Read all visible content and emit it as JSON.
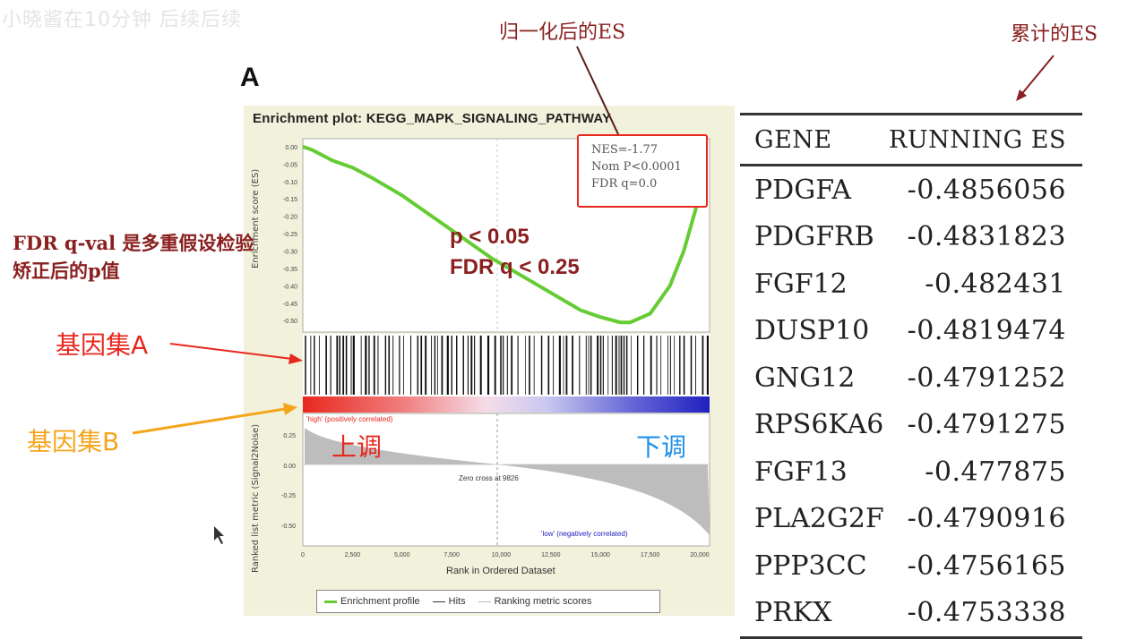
{
  "watermark": "小晓酱在10分钟 后续后续",
  "panel_letter": "A",
  "annotations": {
    "normalized_es": "归一化后的ES",
    "cumulative_es": "累计的ES",
    "fdr_note": "FDR q-val 是多重假设检验矫正后的p值",
    "gene_set_a": "基因集A",
    "gene_set_b": "基因集B",
    "up": "上调",
    "down": "下调",
    "p_threshold": "p < 0.05",
    "fdr_threshold": "FDR q < 0.25"
  },
  "plot": {
    "title": "Enrichment plot: KEGG_MAPK_SIGNALING_PATHWAY",
    "es_ylabel": "Enrichment score (ES)",
    "metric_ylabel": "Ranked list metric (Signal2Noise)",
    "xlabel": "Rank in Ordered Dataset",
    "es_ticks": [
      "0.00",
      "-0.05",
      "-0.10",
      "-0.15",
      "-0.20",
      "-0.25",
      "-0.30",
      "-0.35",
      "-0.40",
      "-0.45",
      "-0.50"
    ],
    "metric_ticks": [
      "0.25",
      "0.00",
      "-0.25",
      "-0.50"
    ],
    "x_ticks": [
      "0",
      "2,500",
      "5,000",
      "7,500",
      "10,000",
      "12,500",
      "15,000",
      "17,500",
      "20,000"
    ],
    "pos_label": "'high' (positively correlated)",
    "neg_label": "'low' (negatively correlated)",
    "zero_cross": "Zero cross at 9826",
    "stats": {
      "nes": "NES=-1.77",
      "nom_p": "Nom P<0.0001",
      "fdr": "FDR q=0.0"
    },
    "legend": {
      "profile": "Enrichment profile",
      "hits": "Hits",
      "metric": "Ranking metric scores"
    },
    "colors": {
      "profile": "#66cc33",
      "positive": "#e8281e",
      "negative": "#2020c0"
    }
  },
  "chart_data": {
    "type": "line",
    "title": "Enrichment plot: KEGG_MAPK_SIGNALING_PATHWAY",
    "xlabel": "Rank in Ordered Dataset",
    "ylabel": "Enrichment score (ES)",
    "xlim": [
      0,
      20500
    ],
    "ylim": [
      -0.52,
      0.01
    ],
    "series": [
      {
        "name": "Enrichment profile",
        "x": [
          0,
          500,
          1500,
          2500,
          3500,
          5000,
          6500,
          8000,
          9500,
          11000,
          12500,
          14000,
          15000,
          16000,
          16500,
          17500,
          18500,
          19200,
          19800,
          20300
        ],
        "y": [
          0.0,
          -0.01,
          -0.04,
          -0.06,
          -0.09,
          -0.14,
          -0.2,
          -0.26,
          -0.32,
          -0.37,
          -0.42,
          -0.47,
          -0.49,
          -0.505,
          -0.505,
          -0.48,
          -0.4,
          -0.3,
          -0.18,
          -0.04
        ]
      }
    ]
  },
  "table": {
    "headers": [
      "GENE",
      "RUNNING ES"
    ],
    "rows": [
      [
        "PDGFA",
        "-0.4856056"
      ],
      [
        "PDGFRB",
        "-0.4831823"
      ],
      [
        "FGF12",
        "-0.482431"
      ],
      [
        "DUSP10",
        "-0.4819474"
      ],
      [
        "GNG12",
        "-0.4791252"
      ],
      [
        "RPS6KA6",
        "-0.4791275"
      ],
      [
        "FGF13",
        "-0.477875"
      ],
      [
        "PLA2G2F",
        "-0.4790916"
      ],
      [
        "PPP3CC",
        "-0.4756165"
      ],
      [
        "PRKX",
        "-0.4753338"
      ]
    ]
  }
}
